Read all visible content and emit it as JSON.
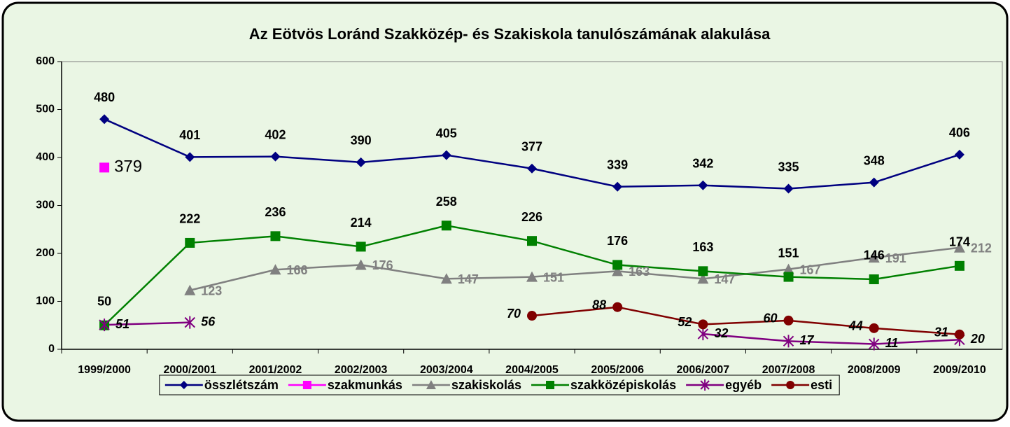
{
  "chart_data": {
    "type": "line",
    "title": "Az Eötvös Loránd Szakközép- és Szakiskola tanulószámának alakulása",
    "categories": [
      "1999/2000",
      "2000/2001",
      "2001/2002",
      "2002/2003",
      "2003/2004",
      "2004/2005",
      "2005/2006",
      "2006/2007",
      "2007/2008",
      "2008/2009",
      "2009/2010"
    ],
    "series": [
      {
        "name": "összlétszám",
        "color": "#000080",
        "marker": "diamond",
        "values": [
          480,
          401,
          402,
          390,
          405,
          377,
          339,
          342,
          335,
          348,
          406
        ]
      },
      {
        "name": "szakmunkás",
        "color": "#ff00ff",
        "marker": "square",
        "values": [
          379,
          null,
          null,
          null,
          null,
          null,
          null,
          null,
          null,
          null,
          null
        ]
      },
      {
        "name": "szakiskolás",
        "color": "#808080",
        "marker": "triangle",
        "values": [
          null,
          123,
          166,
          176,
          147,
          151,
          163,
          147,
          167,
          191,
          212
        ]
      },
      {
        "name": "szakközépiskolás",
        "color": "#008000",
        "marker": "square",
        "values": [
          50,
          222,
          236,
          214,
          258,
          226,
          176,
          163,
          151,
          146,
          174
        ]
      },
      {
        "name": "egyéb",
        "color": "#800080",
        "marker": "star",
        "values": [
          51,
          56,
          null,
          null,
          null,
          null,
          null,
          32,
          17,
          11,
          20
        ]
      },
      {
        "name": "esti",
        "color": "#800000",
        "marker": "circle",
        "values": [
          null,
          null,
          null,
          null,
          null,
          70,
          88,
          52,
          60,
          44,
          31
        ]
      }
    ],
    "ylim": [
      0,
      600
    ],
    "yticks": [
      0,
      100,
      200,
      300,
      400,
      500,
      600
    ],
    "grid": false,
    "legend": "bottom"
  }
}
